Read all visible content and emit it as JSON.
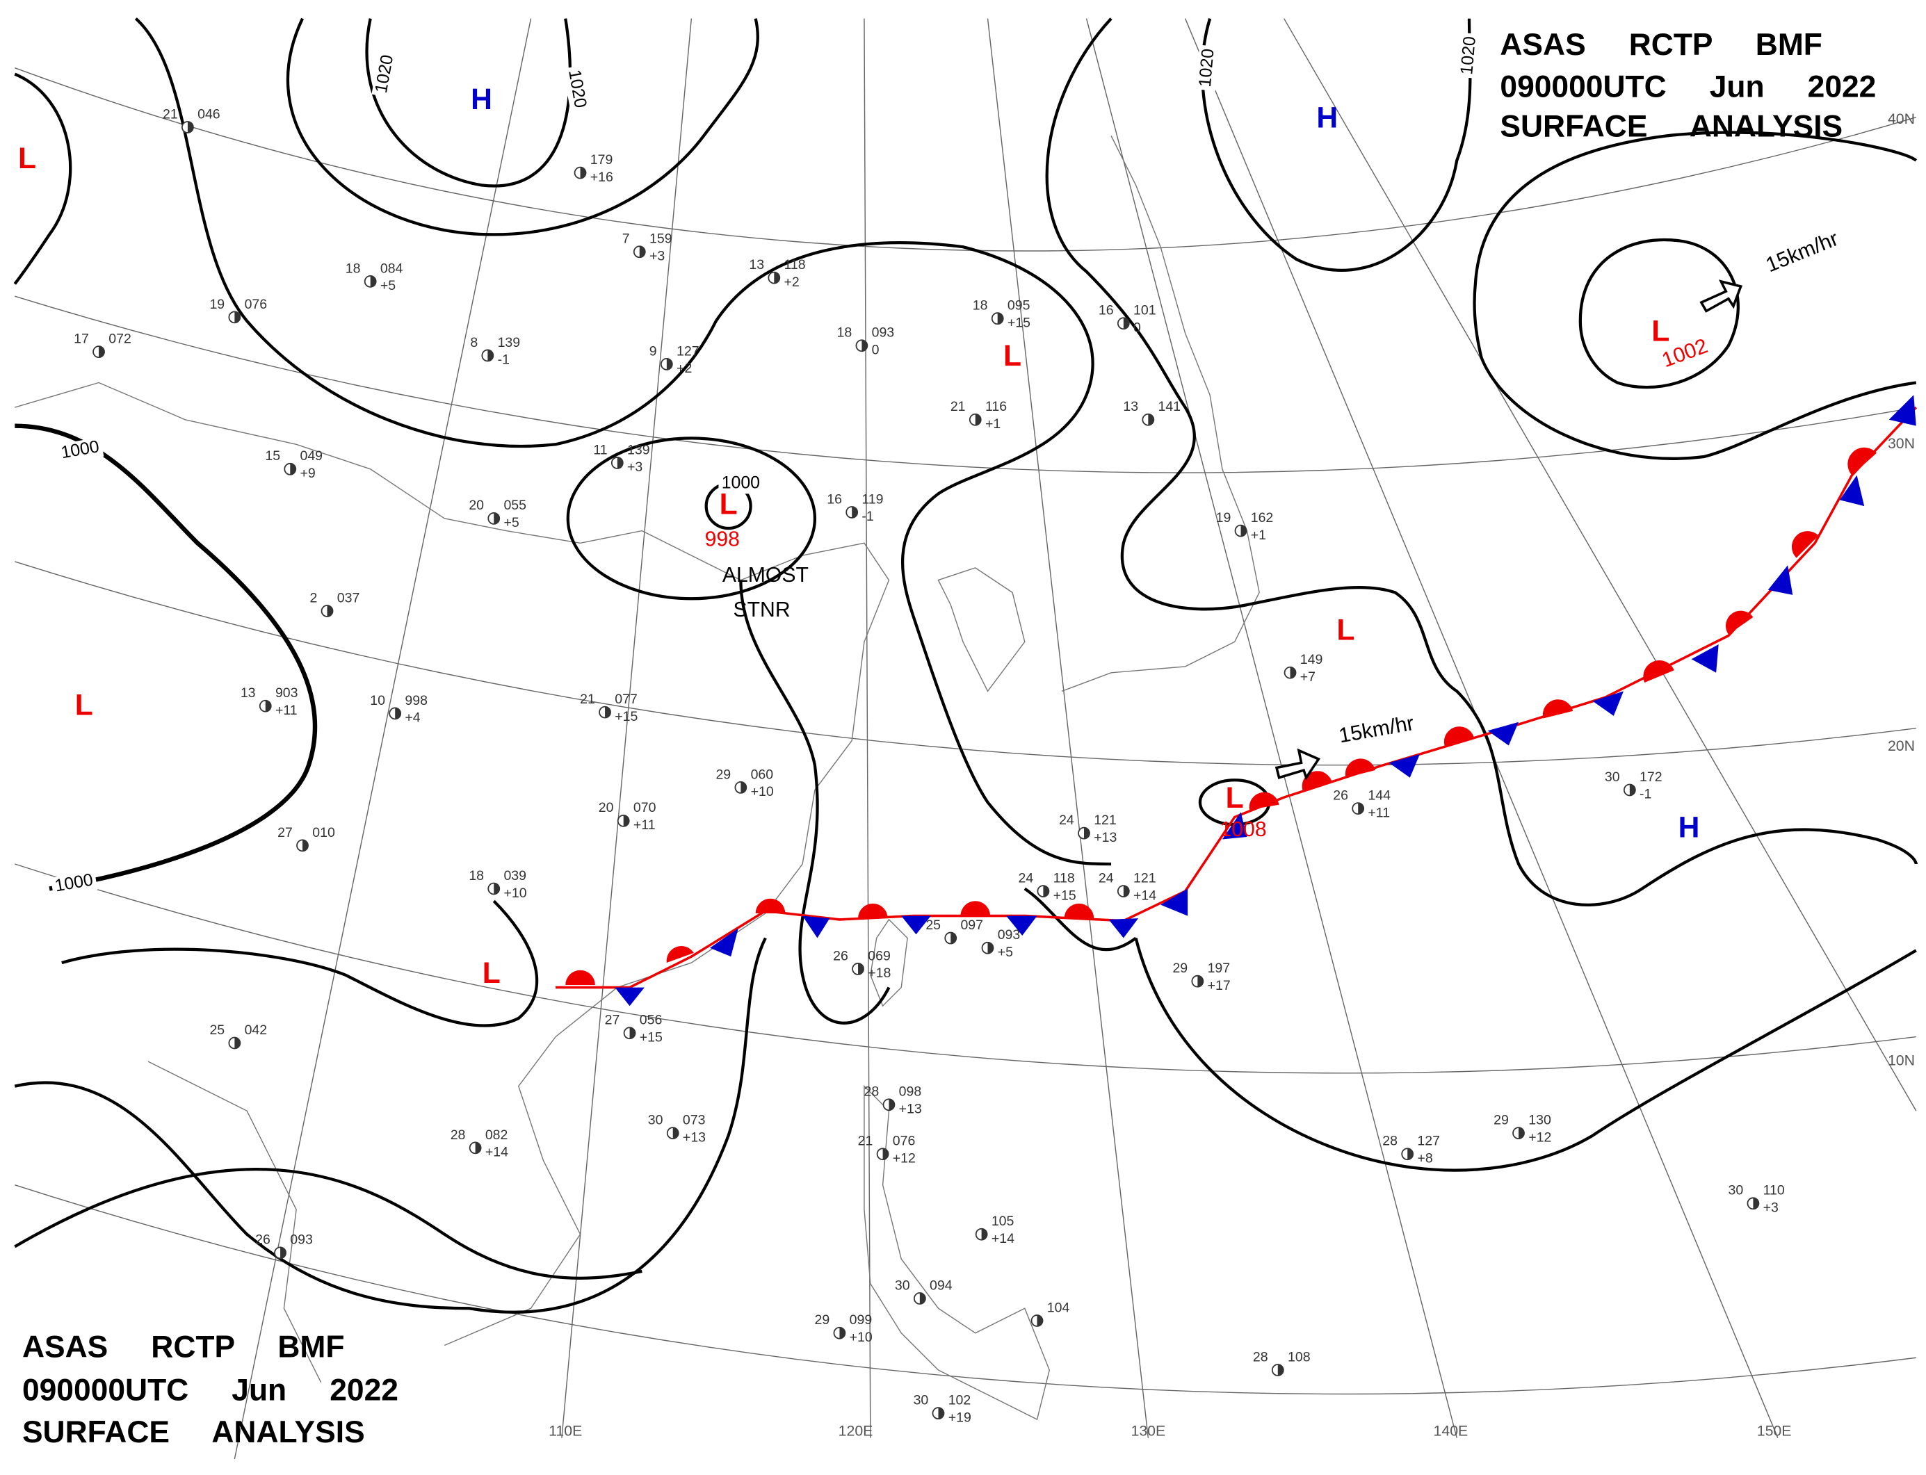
{
  "header": {
    "lines": [
      "ASAS RCTP BMF",
      "090000UTC Jun 2022",
      "SURFACE ANALYSIS"
    ]
  },
  "footer": {
    "lines": [
      "ASAS RCTP BMF",
      "090000UTC Jun 2022",
      "SURFACE ANALYSIS"
    ]
  },
  "isobar_labels": [
    "1020",
    "1020",
    "1020",
    "1020",
    "1000",
    "1000",
    "1000"
  ],
  "systems": [
    {
      "label": "L"
    },
    {
      "label": "L"
    },
    {
      "label": "L",
      "pressure": "998"
    },
    {
      "label": "L"
    },
    {
      "label": "L"
    },
    {
      "label": "L"
    },
    {
      "label": "L",
      "pressure": "1002"
    },
    {
      "label": "L",
      "pressure": "1008"
    },
    {
      "label": "H"
    },
    {
      "label": "H"
    },
    {
      "label": "H"
    }
  ],
  "annotations": [
    "ALMOST",
    "STNR"
  ],
  "motion": [
    "15km/hr",
    "15km/hr"
  ],
  "latitude_labels": [
    "40N",
    "30N",
    "20N",
    "10N"
  ],
  "longitude_labels": [
    "110E",
    "120E",
    "130E",
    "140E",
    "150E"
  ],
  "stations": [
    {
      "temp": "21",
      "pressure": "046"
    },
    {
      "temp": "18",
      "pressure": "084",
      "tendency": "+5"
    },
    {
      "temp": "19",
      "pressure": "076"
    },
    {
      "temp": "17",
      "pressure": "072"
    },
    {
      "temp": "8",
      "pressure": "139",
      "tendency": "-1"
    },
    {
      "temp": "11",
      "pressure": "139",
      "tendency": "+3"
    },
    {
      "temp": "15",
      "pressure": "049",
      "tendency": "+9"
    },
    {
      "temp": "20",
      "pressure": "055",
      "tendency": "+5"
    },
    {
      "temp": "2",
      "pressure": "037"
    },
    {
      "temp": "13",
      "pressure": "903",
      "tendency": "+11"
    },
    {
      "temp": "10",
      "pressure": "998",
      "tendency": "+4"
    },
    {
      "temp": "21",
      "pressure": "077",
      "tendency": "+15"
    },
    {
      "temp": "29",
      "pressure": "060",
      "tendency": "+10"
    },
    {
      "temp": "20",
      "pressure": "070",
      "tendency": "+11"
    },
    {
      "temp": "27",
      "pressure": "010"
    },
    {
      "temp": "18",
      "pressure": "039",
      "tendency": "+10"
    },
    {
      "temp": "25",
      "pressure": "042"
    },
    {
      "temp": "28",
      "pressure": "082",
      "tendency": "+14"
    },
    {
      "temp": "30",
      "pressure": "073",
      "tendency": "+13"
    },
    {
      "temp": "26",
      "pressure": "093"
    },
    {
      "pressure": "179",
      "tendency": "+16"
    },
    {
      "temp": "7",
      "pressure": "159",
      "tendency": "+3"
    },
    {
      "temp": "9",
      "pressure": "127",
      "tendency": "+2"
    },
    {
      "temp": "13",
      "pressure": "118",
      "tendency": "+2"
    },
    {
      "temp": "18",
      "pressure": "093",
      "tendency": "0"
    },
    {
      "temp": "18",
      "pressure": "095",
      "tendency": "+15"
    },
    {
      "temp": "21",
      "pressure": "116",
      "tendency": "+1"
    },
    {
      "temp": "16",
      "pressure": "119",
      "tendency": "-1"
    },
    {
      "temp": "16",
      "pressure": "101",
      "tendency": "0"
    },
    {
      "temp": "13",
      "pressure": "141"
    },
    {
      "temp": "19",
      "pressure": "162",
      "tendency": "+1"
    },
    {
      "pressure": "149",
      "tendency": "+7"
    },
    {
      "temp": "26",
      "pressure": "144",
      "tendency": "+11"
    },
    {
      "temp": "30",
      "pressure": "172",
      "tendency": "-1"
    },
    {
      "temp": "29",
      "pressure": "197",
      "tendency": "+17"
    },
    {
      "temp": "28",
      "pressure": "127",
      "tendency": "+8"
    },
    {
      "temp": "29",
      "pressure": "130",
      "tendency": "+12"
    },
    {
      "temp": "24",
      "pressure": "121",
      "tendency": "+13"
    },
    {
      "temp": "24",
      "pressure": "118",
      "tendency": "+15"
    },
    {
      "temp": "24",
      "pressure": "121",
      "tendency": "+14"
    },
    {
      "temp": "25",
      "pressure": "097"
    },
    {
      "pressure": "093",
      "tendency": "+5"
    },
    {
      "temp": "26",
      "pressure": "069",
      "tendency": "+18"
    },
    {
      "temp": "27",
      "pressure": "056",
      "tendency": "+15"
    },
    {
      "temp": "28",
      "pressure": "098",
      "tendency": "+13"
    },
    {
      "temp": "21",
      "pressure": "076",
      "tendency": "+12"
    },
    {
      "pressure": "105",
      "tendency": "+14"
    },
    {
      "temp": "29",
      "pressure": "099",
      "tendency": "+10"
    },
    {
      "temp": "30",
      "pressure": "094"
    },
    {
      "pressure": "104"
    },
    {
      "temp": "30",
      "pressure": "102",
      "tendency": "+19"
    },
    {
      "temp": "28",
      "pressure": "108"
    },
    {
      "temp": "30",
      "pressure": "110",
      "tendency": "+3"
    }
  ]
}
